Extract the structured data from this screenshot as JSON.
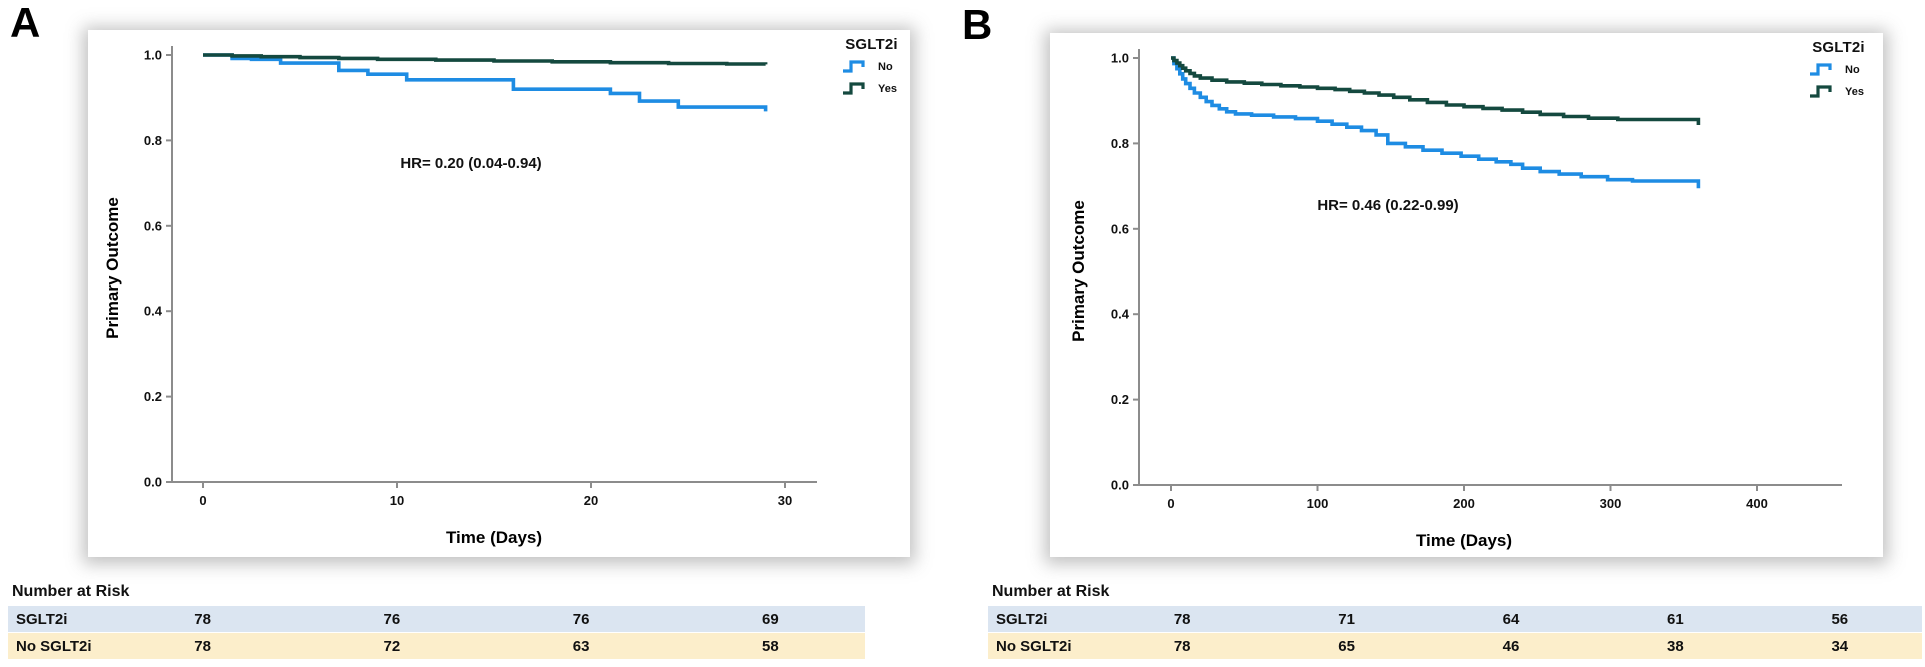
{
  "chart_data": [
    {
      "type": "line",
      "subtype": "kaplan-meier-step",
      "panel_label": "A",
      "title": "",
      "xlabel": "Time (Days)",
      "ylabel": "Primary Outcome",
      "xlim": [
        0,
        30
      ],
      "ylim": [
        0,
        1
      ],
      "x_ticks": [
        0,
        10,
        20,
        30
      ],
      "y_ticks": [
        0,
        0.2,
        0.4,
        0.6,
        0.8,
        1
      ],
      "grid": false,
      "annotation": "HR= 0.20 (0.04-0.94)",
      "legend": {
        "title": "SGLT2i",
        "position": "top-right",
        "items": [
          {
            "label": "No",
            "color": "#1E8CE3"
          },
          {
            "label": "Yes",
            "color": "#14493F"
          }
        ]
      },
      "series": [
        {
          "name": "No",
          "color": "#1E8CE3",
          "points": [
            [
              0,
              1
            ],
            [
              1.5,
              0.992
            ],
            [
              2.5,
              0.99
            ],
            [
              4,
              0.981
            ],
            [
              7,
              0.964
            ],
            [
              8.5,
              0.955
            ],
            [
              10.5,
              0.942
            ],
            [
              16,
              0.92
            ],
            [
              21,
              0.91
            ],
            [
              22.5,
              0.892
            ],
            [
              24.5,
              0.878
            ],
            [
              29,
              0.878
            ],
            [
              29,
              0.868
            ]
          ]
        },
        {
          "name": "Yes",
          "color": "#14493F",
          "points": [
            [
              0,
              1
            ],
            [
              1.5,
              0.998
            ],
            [
              3,
              0.996
            ],
            [
              5,
              0.994
            ],
            [
              7,
              0.992
            ],
            [
              9,
              0.99
            ],
            [
              12,
              0.988
            ],
            [
              15,
              0.986
            ],
            [
              18,
              0.984
            ],
            [
              21,
              0.982
            ],
            [
              24,
              0.98
            ],
            [
              27,
              0.979
            ],
            [
              29,
              0.978
            ]
          ]
        }
      ]
    },
    {
      "type": "line",
      "subtype": "kaplan-meier-step",
      "panel_label": "B",
      "title": "",
      "xlabel": "Time (Days)",
      "ylabel": "Primary Outcome",
      "xlim": [
        0,
        400
      ],
      "ylim": [
        0,
        1
      ],
      "x_ticks": [
        0,
        100,
        200,
        300,
        400
      ],
      "y_ticks": [
        0,
        0.2,
        0.4,
        0.6,
        0.8,
        1
      ],
      "grid": false,
      "annotation": "HR= 0.46 (0.22-0.99)",
      "legend": {
        "title": "SGLT2i",
        "position": "top-right",
        "items": [
          {
            "label": "No",
            "color": "#1E8CE3"
          },
          {
            "label": "Yes",
            "color": "#14493F"
          }
        ]
      },
      "series": [
        {
          "name": "No",
          "color": "#1E8CE3",
          "points": [
            [
              0,
              1
            ],
            [
              2,
              0.987
            ],
            [
              4,
              0.975
            ],
            [
              6,
              0.963
            ],
            [
              8,
              0.951
            ],
            [
              10,
              0.94
            ],
            [
              13,
              0.929
            ],
            [
              16,
              0.918
            ],
            [
              20,
              0.908
            ],
            [
              24,
              0.898
            ],
            [
              28,
              0.889
            ],
            [
              33,
              0.881
            ],
            [
              38,
              0.874
            ],
            [
              44,
              0.869
            ],
            [
              55,
              0.866
            ],
            [
              70,
              0.862
            ],
            [
              85,
              0.858
            ],
            [
              100,
              0.852
            ],
            [
              110,
              0.845
            ],
            [
              120,
              0.838
            ],
            [
              130,
              0.83
            ],
            [
              140,
              0.82
            ],
            [
              148,
              0.8
            ],
            [
              160,
              0.792
            ],
            [
              172,
              0.784
            ],
            [
              185,
              0.777
            ],
            [
              198,
              0.77
            ],
            [
              210,
              0.763
            ],
            [
              222,
              0.757
            ],
            [
              232,
              0.751
            ],
            [
              240,
              0.742
            ],
            [
              252,
              0.734
            ],
            [
              265,
              0.728
            ],
            [
              280,
              0.722
            ],
            [
              298,
              0.715
            ],
            [
              315,
              0.712
            ],
            [
              360,
              0.71
            ],
            [
              360,
              0.695
            ]
          ]
        },
        {
          "name": "Yes",
          "color": "#14493F",
          "points": [
            [
              0,
              1
            ],
            [
              2,
              0.994
            ],
            [
              4,
              0.988
            ],
            [
              6,
              0.982
            ],
            [
              8,
              0.976
            ],
            [
              10,
              0.97
            ],
            [
              13,
              0.964
            ],
            [
              16,
              0.958
            ],
            [
              20,
              0.953
            ],
            [
              28,
              0.948
            ],
            [
              38,
              0.944
            ],
            [
              50,
              0.941
            ],
            [
              62,
              0.938
            ],
            [
              75,
              0.935
            ],
            [
              88,
              0.932
            ],
            [
              100,
              0.929
            ],
            [
              112,
              0.926
            ],
            [
              122,
              0.922
            ],
            [
              132,
              0.918
            ],
            [
              142,
              0.913
            ],
            [
              152,
              0.908
            ],
            [
              163,
              0.902
            ],
            [
              175,
              0.896
            ],
            [
              188,
              0.89
            ],
            [
              200,
              0.886
            ],
            [
              213,
              0.882
            ],
            [
              226,
              0.878
            ],
            [
              240,
              0.873
            ],
            [
              252,
              0.868
            ],
            [
              268,
              0.863
            ],
            [
              285,
              0.859
            ],
            [
              305,
              0.856
            ],
            [
              360,
              0.855
            ],
            [
              360,
              0.843
            ]
          ]
        }
      ]
    }
  ],
  "risk_tables": [
    {
      "title": "Number at Risk",
      "rows": [
        {
          "label": "SGLT2i",
          "bg": "#DBE5F1",
          "values": [
            "78",
            "76",
            "76",
            "69"
          ]
        },
        {
          "label": "No SGLT2i",
          "bg": "#FCEECB",
          "values": [
            "78",
            "72",
            "63",
            "58"
          ]
        }
      ]
    },
    {
      "title": "Number at Risk",
      "rows": [
        {
          "label": "SGLT2i",
          "bg": "#DBE5F1",
          "values": [
            "78",
            "71",
            "64",
            "61",
            "56"
          ]
        },
        {
          "label": "No SGLT2i",
          "bg": "#FCEECB",
          "values": [
            "78",
            "65",
            "46",
            "38",
            "34"
          ]
        }
      ]
    }
  ],
  "colors": {
    "no_curve": "#1E8CE3",
    "yes_curve": "#14493F",
    "axis": "#8C8C8C",
    "risk_row_blue": "#DBE5F1",
    "risk_row_cream": "#FCEECB"
  }
}
